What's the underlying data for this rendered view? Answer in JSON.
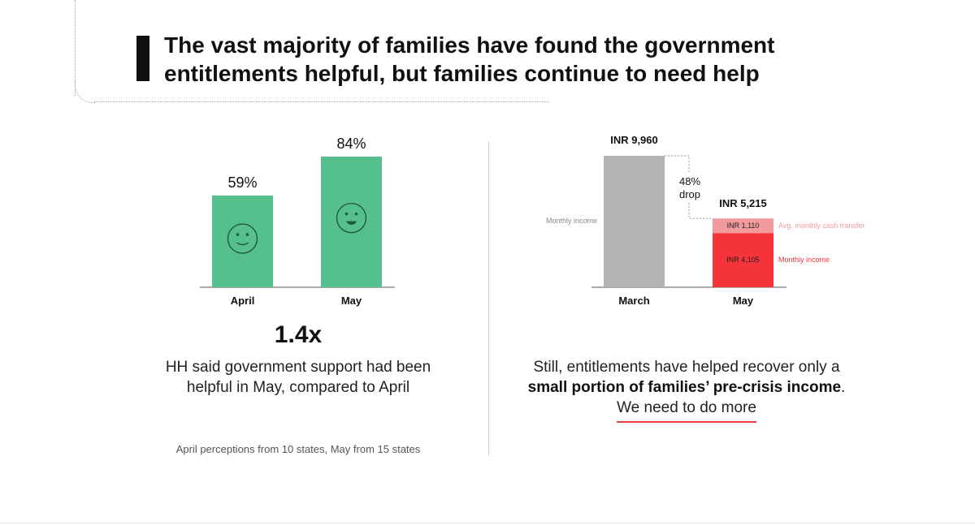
{
  "header": {
    "title": "The vast majority of families have found the government entitlements helpful, but families continue to need help"
  },
  "colors": {
    "green": "#56c08d",
    "gray": "#b3b3b3",
    "red": "#f5333a",
    "pink": "#f39a9c"
  },
  "left_panel": {
    "stat": "1.4x",
    "description": "HH said government support had been helpful in May, compared to April",
    "footnote": "April perceptions from 10 states, May from 15 states"
  },
  "right_panel": {
    "desc_part1": "Still, entitlements have helped recover only a",
    "desc_bold": "small portion of families’ pre-crisis income",
    "desc_end": ".",
    "cta": "We need to do more"
  },
  "chart_data": [
    {
      "type": "bar",
      "categories": [
        "April",
        "May"
      ],
      "values": [
        59,
        84
      ],
      "value_labels": [
        "59%",
        "84%"
      ],
      "icons": [
        "smiley-icon",
        "smiley-icon"
      ],
      "ylim": [
        0,
        100
      ]
    },
    {
      "type": "bar",
      "stacked": true,
      "categories": [
        "March",
        "May"
      ],
      "totals": [
        9960,
        5215
      ],
      "total_labels": [
        "INR 9,960",
        "INR 5,215"
      ],
      "series": [
        {
          "name": "Monthly income",
          "values": [
            9960,
            4105
          ],
          "value_labels": [
            "",
            "INR 4,105"
          ]
        },
        {
          "name": "Avg. monthly cash transfer",
          "values": [
            0,
            1110
          ],
          "value_labels": [
            "",
            "INR 1,110"
          ]
        }
      ],
      "side_labels": {
        "march": "Monthly income"
      },
      "drop_label": [
        "48%",
        "drop"
      ],
      "ylim": [
        0,
        10000
      ]
    }
  ]
}
